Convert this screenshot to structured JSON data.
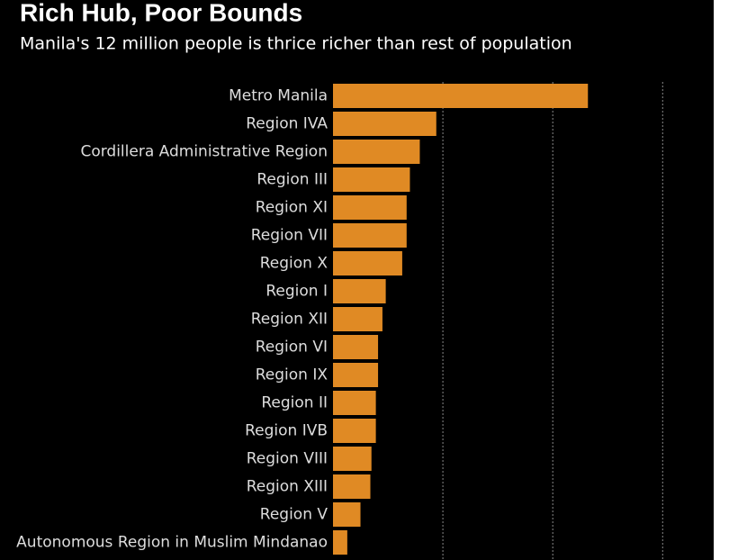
{
  "chart_data": {
    "type": "barh",
    "title": "Rich Hub, Poor Bounds",
    "subtitle": "Manila's 12 million people is thrice richer than rest of population",
    "categories": [
      "Metro Manila",
      "Region IVA",
      "Cordillera Administrative Region",
      "Region III",
      "Region XI",
      "Region VII",
      "Region X",
      "Region I",
      "Region XII",
      "Region VI",
      "Region IX",
      "Region II",
      "Region IVB",
      "Region VIII",
      "Region XIII",
      "Region V",
      "Autonomous Region in Muslim Mindanao"
    ],
    "values": [
      232000,
      94000,
      79000,
      70000,
      67000,
      67000,
      63000,
      48000,
      45000,
      41000,
      41000,
      39000,
      39000,
      35000,
      34000,
      25000,
      13000
    ],
    "color": "#e08a24",
    "xlim": [
      0,
      344000
    ],
    "xticks": [
      100000,
      200000,
      300000
    ],
    "grid": true
  }
}
